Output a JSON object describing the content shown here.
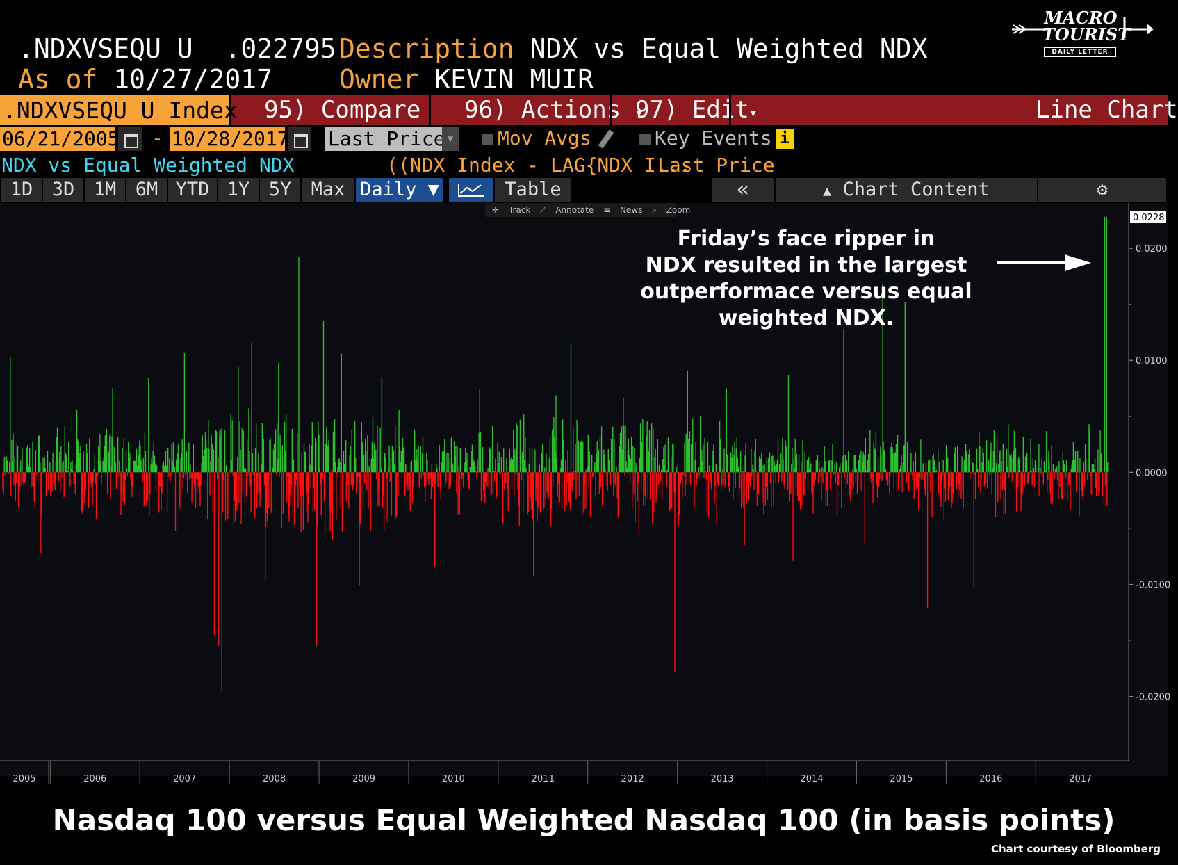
{
  "header": {
    "ticker": ".NDXVSEQU U",
    "last_value": ".022795",
    "desc_label": "Description",
    "desc_value": "NDX vs Equal Weighted NDX",
    "asof_label": "As of",
    "asof_value": "10/27/2017",
    "owner_label": "Owner",
    "owner_value": "KEVIN MUIR"
  },
  "logo": {
    "line1": "MACRO",
    "line2": "TOURIST",
    "sub": "DAILY LETTER"
  },
  "function_bar": {
    "ticker": ".NDXVSEQU U Index",
    "compare": "95) Compare",
    "actions": "96) Actions",
    "edit": "97) Edit",
    "chart_type": "Line Chart"
  },
  "date_row": {
    "start": "06/21/2005",
    "dash": "-",
    "end": "10/28/2017",
    "field": "Last Price",
    "mov_avgs": "Mov Avgs",
    "key_events": "Key Events",
    "info": "i"
  },
  "legend_row": {
    "series_name": "NDX vs Equal Weighted NDX",
    "formula": "((NDX Index - LAG{NDX I...",
    "field": "Last Price"
  },
  "tabs": {
    "periods": [
      "1D",
      "3D",
      "1M",
      "6M",
      "YTD",
      "1Y",
      "5Y",
      "Max"
    ],
    "frequency": "Daily ▼",
    "table": "Table",
    "collapse": "«",
    "chart_content": "Chart Content"
  },
  "mini_tools": {
    "track": "Track",
    "annotate": "Annotate",
    "news": "News",
    "zoom": "Zoom"
  },
  "annotation": {
    "line1": "Friday’s face ripper in",
    "line2": "NDX resulted in the largest",
    "line3": "outperformace versus equal",
    "line4": "weighted NDX."
  },
  "colors": {
    "positive": "#2fbf2f",
    "negative": "#ff1010",
    "accent_orange": "#f7a339",
    "bar_red": "#8c1a1f",
    "cyan": "#40d8f0"
  },
  "chart_data": {
    "type": "bar",
    "ylim": [
      -0.024,
      0.0228
    ],
    "yticks": [
      0.02,
      0.01,
      0.0,
      -0.01,
      -0.02
    ],
    "ytick_labels": [
      "0.0200",
      "0.0100",
      "0.0000",
      "-0.0100",
      "-0.0200"
    ],
    "last_value_label": "0.0228",
    "x_start": 2005.47,
    "x_end": 2017.82,
    "xtick_labels": [
      "2005",
      "2006",
      "2007",
      "2008",
      "2009",
      "2010",
      "2011",
      "2012",
      "2013",
      "2014",
      "2015",
      "2016",
      "2017"
    ],
    "xticks": [
      2005.5,
      2006,
      2007,
      2008,
      2009,
      2010,
      2011,
      2012,
      2013,
      2014,
      2015,
      2016,
      2017
    ],
    "spikes": [
      [
        2005.55,
        0.0103
      ],
      [
        2005.9,
        -0.0072
      ],
      [
        2006.3,
        0.0056
      ],
      [
        2006.7,
        0.0075
      ],
      [
        2007.1,
        0.0084
      ],
      [
        2007.4,
        -0.0052
      ],
      [
        2007.5,
        0.0107
      ],
      [
        2007.83,
        -0.0145
      ],
      [
        2007.88,
        -0.0155
      ],
      [
        2007.92,
        -0.0195
      ],
      [
        2008.1,
        0.0094
      ],
      [
        2008.25,
        0.0115
      ],
      [
        2008.4,
        -0.0097
      ],
      [
        2008.55,
        0.0098
      ],
      [
        2008.78,
        0.0192
      ],
      [
        2008.98,
        -0.0155
      ],
      [
        2009.05,
        0.0135
      ],
      [
        2009.25,
        0.0106
      ],
      [
        2009.45,
        -0.0101
      ],
      [
        2009.7,
        0.0085
      ],
      [
        2010.3,
        -0.0085
      ],
      [
        2010.8,
        0.0074
      ],
      [
        2011.4,
        -0.0093
      ],
      [
        2011.65,
        0.0069
      ],
      [
        2011.82,
        0.0114
      ],
      [
        2012.4,
        0.0066
      ],
      [
        2012.58,
        -0.0056
      ],
      [
        2012.98,
        -0.0178
      ],
      [
        2013.12,
        0.0091
      ],
      [
        2013.55,
        0.0075
      ],
      [
        2013.75,
        -0.0065
      ],
      [
        2014.25,
        0.0087
      ],
      [
        2014.3,
        -0.0079
      ],
      [
        2014.86,
        0.0128
      ],
      [
        2015.1,
        -0.0063
      ],
      [
        2015.3,
        0.0168
      ],
      [
        2015.55,
        0.0152
      ],
      [
        2015.8,
        -0.0121
      ],
      [
        2015.98,
        -0.0042
      ],
      [
        2016.32,
        -0.0102
      ],
      [
        2016.7,
        0.0043
      ],
      [
        2017.6,
        0.0043
      ],
      [
        2017.78,
        0.0228
      ]
    ]
  },
  "chart_title": "Nasdaq 100 versus Equal Weighted Nasdaq 100 (in basis points)",
  "courtesy": "Chart courtesy of Bloomberg"
}
